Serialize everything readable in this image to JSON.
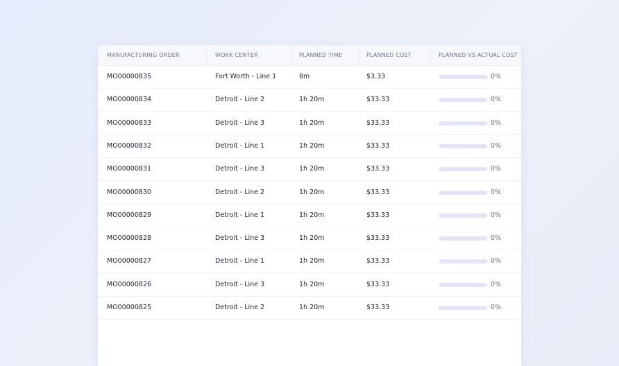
{
  "table": {
    "columns": [
      "MANUFACTURING ORDER",
      "WORK CENTER",
      "PLANNED TIME",
      "PLANNED COST",
      "PLANNED VS ACTUAL COST"
    ],
    "rows": [
      [
        "MO00000835",
        "Fort Worth - Line 1",
        "8m",
        "$3.33",
        "0%"
      ],
      [
        "MO00000834",
        "Detroit - Line 2",
        "1h 20m",
        "$33.33",
        "0%"
      ],
      [
        "MO00000833",
        "Detroit - Line 3",
        "1h 20m",
        "$33.33",
        "0%"
      ],
      [
        "MO00000832",
        "Detroit - Line 1",
        "1h 20m",
        "$33.33",
        "0%"
      ],
      [
        "MO00000831",
        "Detroit - Line 3",
        "1h 20m",
        "$33.33",
        "0%"
      ],
      [
        "MO00000830",
        "Detroit - Line 2",
        "1h 20m",
        "$33.33",
        "0%"
      ],
      [
        "MO00000829",
        "Detroit - Line 1",
        "1h 20m",
        "$33.33",
        "0%"
      ],
      [
        "MO00000828",
        "Detroit - Line 3",
        "1h 20m",
        "$33.33",
        "0%"
      ],
      [
        "MO00000827",
        "Detroit - Line 1",
        "1h 20m",
        "$33.33",
        "0%"
      ],
      [
        "MO00000826",
        "Detroit - Line 3",
        "1h 20m",
        "$33.33",
        "0%"
      ],
      [
        "MO00000825",
        "Detroit - Line 2",
        "1h 20m",
        "$33.33",
        "0%"
      ]
    ]
  }
}
